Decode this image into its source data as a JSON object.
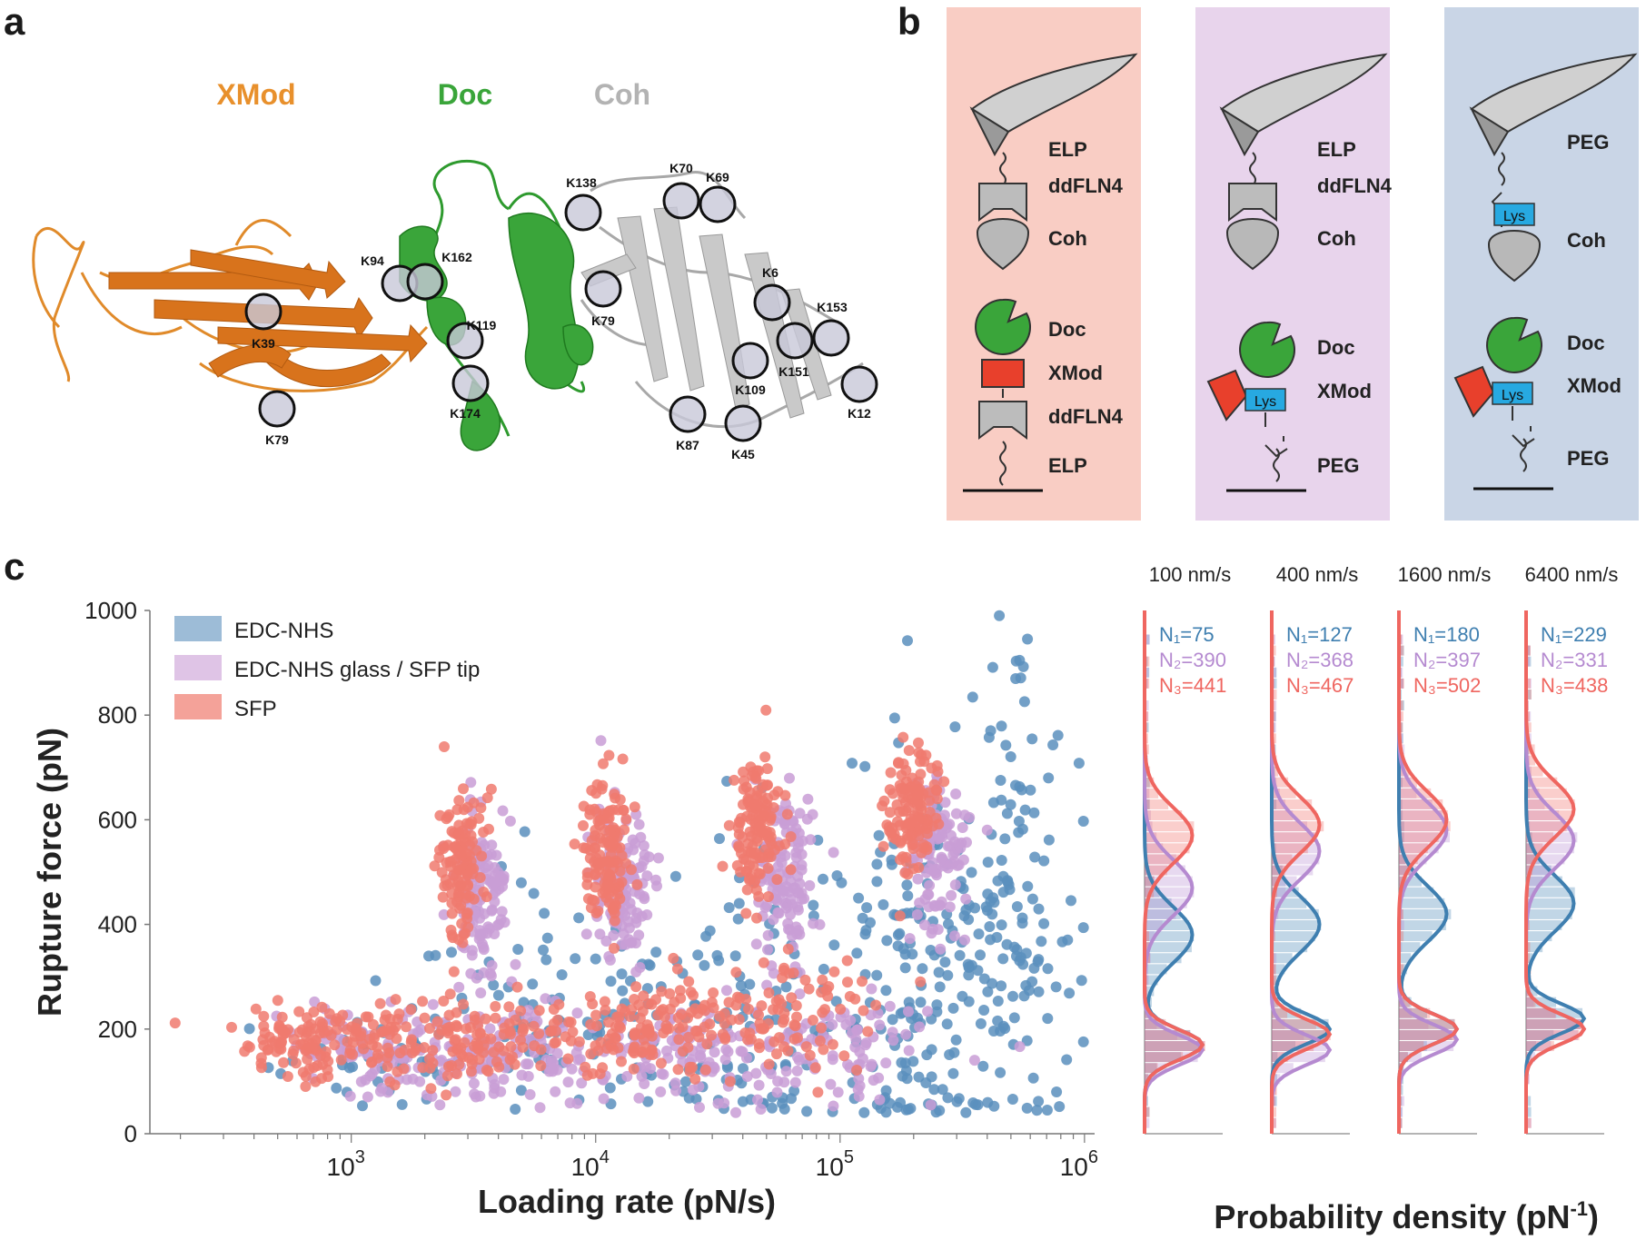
{
  "panels": {
    "a": "a",
    "b": "b",
    "c": "c"
  },
  "panel_a": {
    "domains": [
      "XMod",
      "Doc",
      "Coh"
    ],
    "domain_colors": [
      "#e8902c",
      "#3aa53a",
      "#b3b3b3"
    ],
    "lysines": [
      "K39",
      "K79",
      "K94",
      "K162",
      "K119",
      "K174",
      "K138",
      "K70",
      "K69",
      "K79",
      "K6",
      "K153",
      "K151",
      "K109",
      "K12",
      "K87",
      "K45"
    ]
  },
  "panel_b": {
    "colors": {
      "pink": "#f9cdc4",
      "lilac": "#e8d4ec",
      "blue": "#c9d5e6",
      "lys": "#27a9e1",
      "doc": "#3aa53a",
      "xmod": "#e8402c",
      "coh": "#b8b8b8"
    },
    "lys_label": "Lys",
    "col1": [
      "ELP",
      "ddFLN4",
      "Coh",
      "Doc",
      "XMod",
      "ddFLN4",
      "ELP"
    ],
    "col2": [
      "ELP",
      "ddFLN4",
      "Coh",
      "Doc",
      "XMod",
      "PEG"
    ],
    "col3": [
      "PEG",
      "Coh",
      "Doc",
      "XMod",
      "PEG"
    ]
  },
  "chart_data": [
    {
      "type": "scatter",
      "xlabel": "Loading rate (pN/s)",
      "ylabel": "Rupture force (pN)",
      "x_scale": "log",
      "xlim": [
        150,
        1100000
      ],
      "ylim": [
        0,
        1000
      ],
      "y_ticks": [
        "0",
        "200",
        "400",
        "600",
        "800",
        "1000"
      ],
      "x_ticks": [
        {
          "base": "10",
          "exp": "3"
        },
        {
          "base": "10",
          "exp": "4"
        },
        {
          "base": "10",
          "exp": "5"
        },
        {
          "base": "10",
          "exp": "6"
        }
      ],
      "legend_position": "top-left",
      "series": [
        {
          "name": "EDC-NHS",
          "color": "#5b8fbd",
          "clusters": [
            {
              "x": 1300,
              "y": 150,
              "sx": 0.22,
              "sy": 45,
              "n": 40
            },
            {
              "x": 6000,
              "y": 220,
              "sx": 0.3,
              "sy": 110,
              "n": 80
            },
            {
              "x": 30000,
              "y": 250,
              "sx": 0.3,
              "sy": 160,
              "n": 110
            },
            {
              "x": 250000,
              "y": 320,
              "sx": 0.28,
              "sy": 190,
              "n": 260
            },
            {
              "x": 500000,
              "y": 650,
              "sx": 0.12,
              "sy": 160,
              "n": 40
            }
          ]
        },
        {
          "name": "EDC-NHS glass / SFP tip",
          "color": "#c99dd6",
          "clusters": [
            {
              "x": 1300,
              "y": 150,
              "sx": 0.2,
              "sy": 40,
              "n": 90
            },
            {
              "x": 3500,
              "y": 450,
              "sx": 0.06,
              "sy": 80,
              "n": 120
            },
            {
              "x": 4500,
              "y": 140,
              "sx": 0.22,
              "sy": 45,
              "n": 90
            },
            {
              "x": 13000,
              "y": 470,
              "sx": 0.06,
              "sy": 80,
              "n": 120
            },
            {
              "x": 20000,
              "y": 150,
              "sx": 0.22,
              "sy": 50,
              "n": 90
            },
            {
              "x": 60000,
              "y": 480,
              "sx": 0.06,
              "sy": 80,
              "n": 120
            },
            {
              "x": 100000,
              "y": 170,
              "sx": 0.22,
              "sy": 55,
              "n": 90
            },
            {
              "x": 250000,
              "y": 540,
              "sx": 0.06,
              "sy": 70,
              "n": 110
            }
          ]
        },
        {
          "name": "SFP",
          "color": "#f07a6e",
          "clusters": [
            {
              "x": 700,
              "y": 170,
              "sx": 0.18,
              "sy": 35,
              "n": 130
            },
            {
              "x": 2800,
              "y": 520,
              "sx": 0.05,
              "sy": 70,
              "n": 120
            },
            {
              "x": 3000,
              "y": 180,
              "sx": 0.2,
              "sy": 40,
              "n": 130
            },
            {
              "x": 11000,
              "y": 540,
              "sx": 0.05,
              "sy": 70,
              "n": 130
            },
            {
              "x": 15000,
              "y": 200,
              "sx": 0.2,
              "sy": 50,
              "n": 120
            },
            {
              "x": 45000,
              "y": 580,
              "sx": 0.05,
              "sy": 60,
              "n": 130
            },
            {
              "x": 60000,
              "y": 230,
              "sx": 0.22,
              "sy": 60,
              "n": 100
            },
            {
              "x": 200000,
              "y": 620,
              "sx": 0.05,
              "sy": 60,
              "n": 130
            }
          ]
        }
      ]
    },
    {
      "type": "histogram",
      "xlabel": "Probability density (pN",
      "xlabel_sup": "-1",
      "xlabel_end": ")",
      "ylim": [
        0,
        1000
      ],
      "speeds": [
        {
          "title": "100 nm/s",
          "N": [
            "N₁=75",
            "N₂=390",
            "N₃=441"
          ],
          "peaks": [
            [
              170,
              380
            ],
            [
              160,
              470
            ],
            [
              170,
              570
            ]
          ]
        },
        {
          "title": "400 nm/s",
          "N": [
            "N₁=127",
            "N₂=368",
            "N₃=467"
          ],
          "peaks": [
            [
              200,
              400
            ],
            [
              160,
              540
            ],
            [
              190,
              590
            ]
          ]
        },
        {
          "title": "1600 nm/s",
          "N": [
            "N₁=180",
            "N₂=397",
            "N₃=502"
          ],
          "peaks": [
            [
              200,
              420
            ],
            [
              180,
              580
            ],
            [
              200,
              600
            ]
          ]
        },
        {
          "title": "6400 nm/s",
          "N": [
            "N₁=229",
            "N₂=331",
            "N₃=438"
          ],
          "peaks": [
            [
              220,
              440
            ],
            [
              200,
              560
            ],
            [
              200,
              620
            ]
          ]
        }
      ],
      "colors": [
        "#3f7fb0",
        "#b58ad0",
        "#ef6660"
      ]
    }
  ]
}
